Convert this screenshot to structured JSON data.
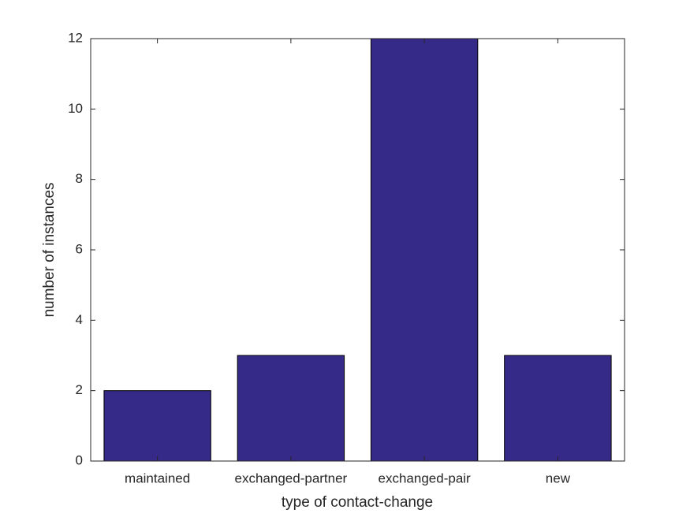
{
  "chart_data": {
    "type": "bar",
    "x_label": "type of contact-change",
    "y_label": "number of instances",
    "categories": [
      "maintained",
      "exchanged-partner",
      "exchanged-pair",
      "new"
    ],
    "values": [
      2,
      3,
      12,
      3
    ],
    "color": "#352a87",
    "ylim": [
      0,
      12
    ],
    "yticks": [
      0,
      2,
      4,
      6,
      8,
      10,
      12
    ],
    "grid": false
  }
}
